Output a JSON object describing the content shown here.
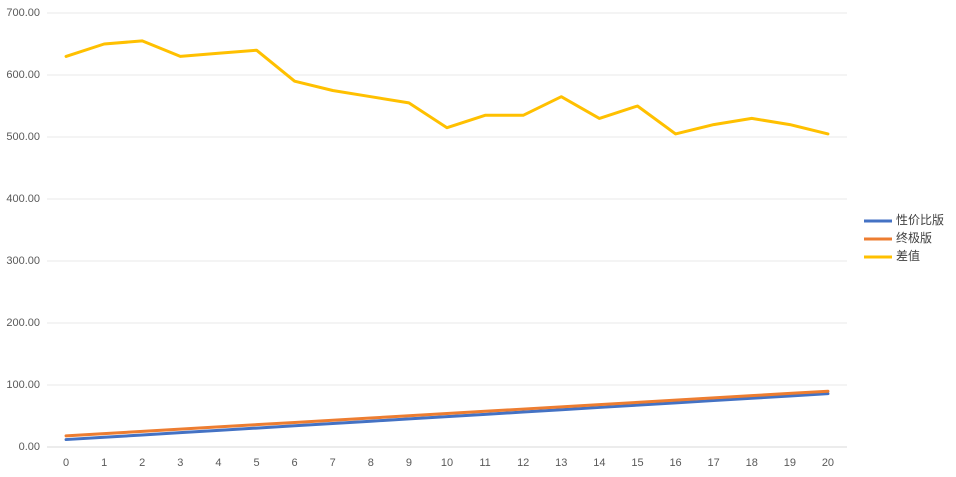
{
  "chart_data": {
    "type": "line",
    "categories": [
      "0",
      "1",
      "2",
      "3",
      "4",
      "5",
      "6",
      "7",
      "8",
      "9",
      "10",
      "11",
      "12",
      "13",
      "14",
      "15",
      "16",
      "17",
      "18",
      "19",
      "20"
    ],
    "series": [
      {
        "name": "性价比版",
        "color": "#4472c4",
        "values": [
          12.0,
          15.7,
          19.4,
          23.1,
          26.8,
          30.5,
          34.2,
          37.9,
          41.6,
          45.3,
          49.0,
          52.7,
          56.4,
          60.1,
          63.8,
          67.5,
          71.2,
          74.9,
          78.6,
          82.3,
          86.0
        ]
      },
      {
        "name": "终极版",
        "color": "#ed7d31",
        "values": [
          18,
          21.6,
          25.2,
          28.8,
          32.4,
          36,
          39.6,
          43.2,
          46.8,
          50.4,
          54,
          57.6,
          61.2,
          64.8,
          68.4,
          72,
          75.6,
          79.2,
          82.8,
          86.4,
          90
        ]
      },
      {
        "name": "差值",
        "color": "#ffc000",
        "values": [
          630,
          650,
          655,
          630,
          635,
          640,
          590,
          575,
          565,
          555,
          515,
          535,
          535,
          565,
          530,
          550,
          505,
          520,
          530,
          520,
          505
        ]
      }
    ],
    "ylim": [
      0,
      700
    ],
    "yticks": [
      {
        "value": 0,
        "label": "0.00"
      },
      {
        "value": 100,
        "label": "100.00"
      },
      {
        "value": 200,
        "label": "200.00"
      },
      {
        "value": 300,
        "label": "300.00"
      },
      {
        "value": 400,
        "label": "400.00"
      },
      {
        "value": 500,
        "label": "500.00"
      },
      {
        "value": 600,
        "label": "600.00"
      },
      {
        "value": 700,
        "label": "700.00"
      }
    ],
    "grid": true,
    "legend": "right"
  }
}
